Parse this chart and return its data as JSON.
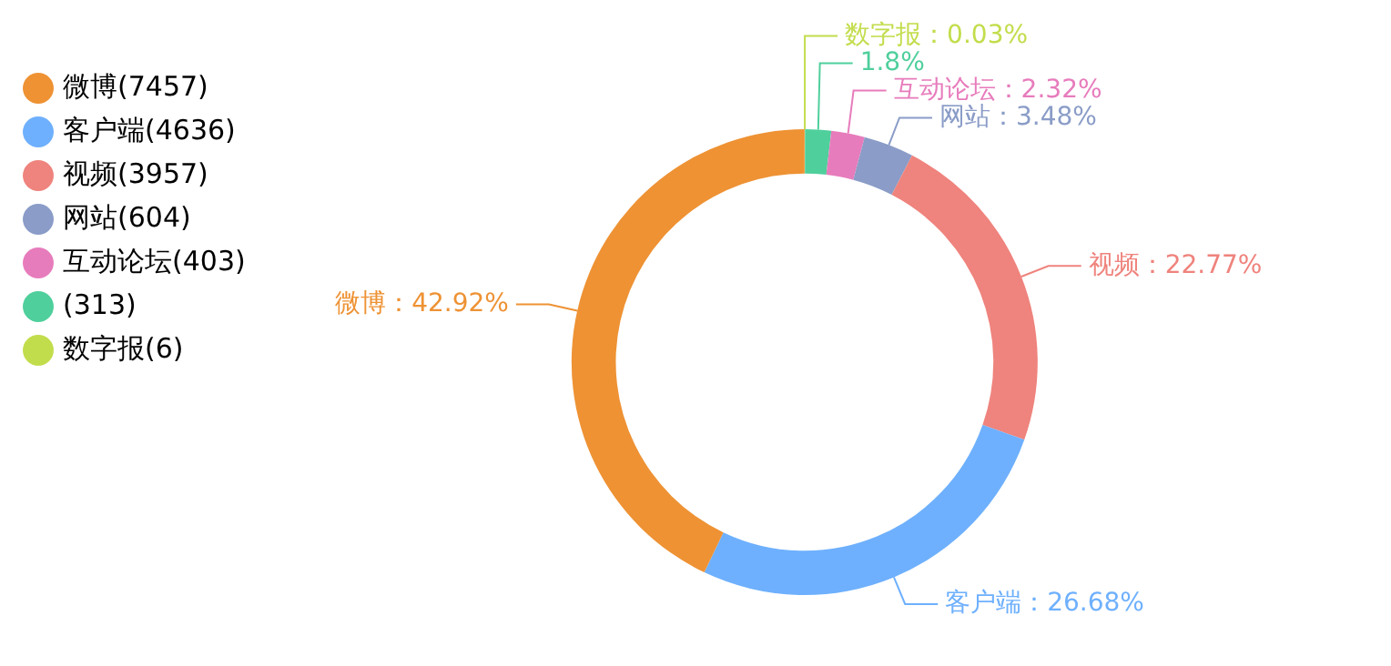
{
  "chart_data": {
    "type": "donut",
    "categories": [
      "微博(7457)",
      "客户端(4636)",
      "视频(3957)",
      "网站(604)",
      "互动论坛(403)",
      "(313)",
      "数字报(6)"
    ],
    "values": [
      42.92,
      26.68,
      22.77,
      3.48,
      2.32,
      1.8,
      0.03
    ],
    "value_labels": [
      "微博：42.92%",
      "客户端：26.68%",
      "视频：22.77%",
      "网站：3.48%",
      "互动论坛：2.32%",
      "1.8%",
      "数字报：0.03%"
    ],
    "colors": [
      "#ee9234",
      "#6eb0fd",
      "#ef837d",
      "#8a9cc7",
      "#e77cbc",
      "#4fcf9c",
      "#c2dd4c"
    ],
    "legend": "top left"
  }
}
